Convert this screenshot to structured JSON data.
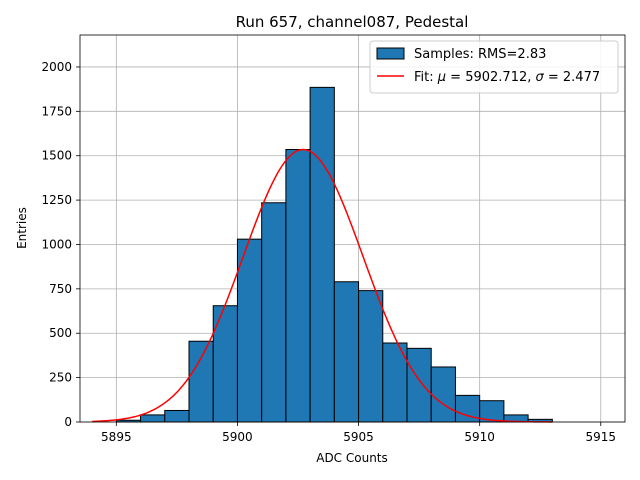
{
  "chart_data": {
    "type": "bar",
    "title": "Run 657, channel087, Pedestal",
    "xlabel": "ADC Counts",
    "ylabel": "Entries",
    "xlim": [
      5893.5,
      5916.0
    ],
    "ylim": [
      0,
      2180
    ],
    "xticks": [
      5895,
      5900,
      5905,
      5910,
      5915
    ],
    "yticks": [
      0,
      250,
      500,
      750,
      1000,
      1250,
      1500,
      1750,
      2000
    ],
    "grid": true,
    "legend_position": "top-right",
    "histogram": {
      "name": "Samples: RMS=2.83",
      "color": "#1f77b4",
      "edge_color": "#000000",
      "bin_edges": [
        5895,
        5896,
        5897,
        5898,
        5899,
        5900,
        5901,
        5902,
        5903,
        5904,
        5905,
        5906,
        5907,
        5908,
        5909,
        5910,
        5911,
        5912,
        5913
      ],
      "counts": [
        10,
        40,
        65,
        455,
        655,
        1030,
        1235,
        1535,
        1885,
        790,
        740,
        445,
        415,
        310,
        150,
        120,
        40,
        15
      ]
    },
    "fit": {
      "name": "Fit: μ = 5902.712, σ = 2.477",
      "legend_prefix": "Fit: ",
      "mu_symbol": "μ",
      "mid_text": " = 5902.712, ",
      "sigma_symbol": "σ",
      "sigma_text": " = 2.477",
      "color": "#ff0000",
      "mu": 5902.712,
      "sigma": 2.477,
      "amplitude": 1535,
      "x_range": [
        5894,
        5913
      ]
    }
  }
}
